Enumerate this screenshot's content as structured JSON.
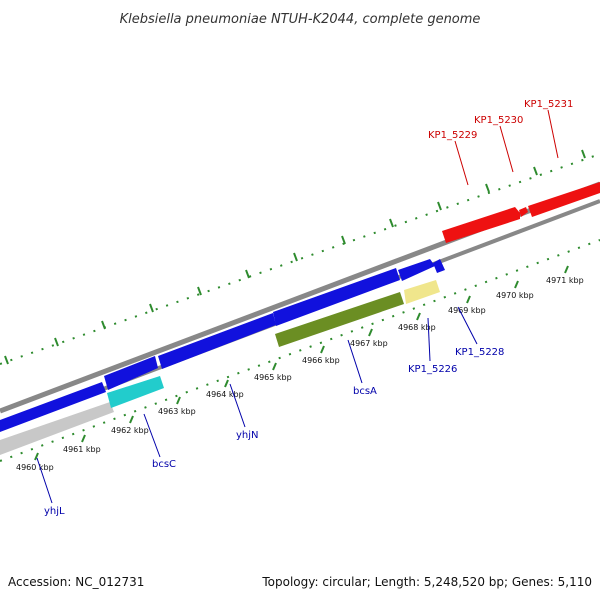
{
  "title": "Klebsiella pneumoniae NTUH-K2044, complete genome",
  "footer": {
    "accession": "Accession: NC_012731",
    "info": "Topology: circular; Length: 5,248,520 bp; Genes: 5,110"
  },
  "colors": {
    "background": "#ffffff",
    "tick": "#2e8b2e",
    "backbone": "#888888",
    "backbone_lower": "#cccccc",
    "forward_strand_label": "#cc0000",
    "reverse_strand_label": "#0000aa",
    "forward_gene": "#ee1111",
    "reverse_gene": "#1111dd",
    "bcsC": "#22cccc",
    "bcsA": "#6b8e23",
    "KP1_5226": "#f0e68c",
    "yhjL": "#c8c8c8"
  },
  "ticks": [
    {
      "label": "4960 kbp"
    },
    {
      "label": "4961 kbp"
    },
    {
      "label": "4962 kbp"
    },
    {
      "label": "4963 kbp"
    },
    {
      "label": "4964 kbp"
    },
    {
      "label": "4965 kbp"
    },
    {
      "label": "4966 kbp"
    },
    {
      "label": "4967 kbp"
    },
    {
      "label": "4968 kbp"
    },
    {
      "label": "4969 kbp"
    },
    {
      "label": "4970 kbp"
    },
    {
      "label": "4971 kbp"
    }
  ],
  "forward_genes": [
    {
      "name": "KP1_5229"
    },
    {
      "name": "KP1_5230"
    },
    {
      "name": "KP1_5231"
    }
  ],
  "reverse_genes": [
    {
      "name": "yhjL"
    },
    {
      "name": "bcsC"
    },
    {
      "name": "yhjN"
    },
    {
      "name": "bcsA"
    },
    {
      "name": "KP1_5226"
    },
    {
      "name": "KP1_5228"
    }
  ]
}
